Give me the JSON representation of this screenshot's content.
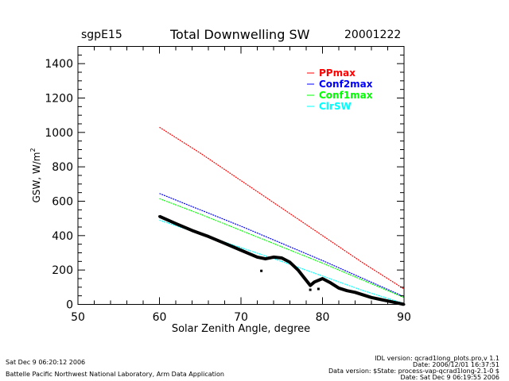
{
  "header": {
    "site": "sgpE15",
    "title": "Total Downwelling SW",
    "date": "20001222"
  },
  "footer": {
    "left": [
      "Sat Dec  9 06:20:12 2006",
      "Battelle Pacific Northwest National Laboratory, Arm Data Application"
    ],
    "right": [
      "IDL version: qcrad1long_plots.pro,v 1.1",
      "Date: 2006/12/01 16:37:51",
      "Data version: $State: process-vap-qcrad1long-2.1-0 $",
      "Date: Sat Dec  9 06:19:55 2006"
    ]
  },
  "colors": {
    "PPmax": "#ff0000",
    "Conf2max": "#0000ff",
    "Conf1max": "#00ff00",
    "ClrSW": "#00ffff",
    "data": "#000000"
  },
  "chart_data": {
    "type": "line",
    "title": "Total Downwelling SW",
    "xlabel": "Solar Zenith Angle, degree",
    "ylabel": "GSW, W/m",
    "ylabel_sup": "2",
    "xlim": [
      50,
      90
    ],
    "ylim": [
      0,
      1500
    ],
    "xticks": [
      "50",
      "60",
      "70",
      "80",
      "90"
    ],
    "yticks": [
      "0",
      "200",
      "400",
      "600",
      "800",
      "1000",
      "1200",
      "1400"
    ],
    "legend_position": "top-right",
    "series": [
      {
        "name": "PPmax",
        "x": [
          60,
          65,
          70,
          75,
          80,
          85,
          90
        ],
        "values": [
          1030,
          880,
          720,
          560,
          400,
          240,
          90
        ]
      },
      {
        "name": "Conf2max",
        "x": [
          60,
          65,
          70,
          75,
          80,
          85,
          90
        ],
        "values": [
          645,
          550,
          455,
          355,
          255,
          150,
          45
        ]
      },
      {
        "name": "Conf1max",
        "x": [
          60,
          65,
          70,
          75,
          80,
          85,
          90
        ],
        "values": [
          615,
          525,
          430,
          335,
          240,
          140,
          40
        ]
      },
      {
        "name": "ClrSW",
        "x": [
          60,
          65,
          70,
          75,
          80,
          85,
          90
        ],
        "values": [
          490,
          410,
          330,
          250,
          165,
          80,
          5
        ]
      }
    ],
    "observed": {
      "name": "data",
      "x": [
        60,
        62,
        64,
        66,
        68,
        70,
        72,
        73,
        74,
        75,
        76,
        77,
        78,
        78.5,
        79,
        80,
        81,
        82,
        83,
        84,
        85,
        86,
        87,
        88,
        89,
        90
      ],
      "values": [
        512,
        470,
        430,
        395,
        355,
        315,
        275,
        265,
        275,
        270,
        245,
        200,
        140,
        110,
        130,
        150,
        125,
        95,
        80,
        70,
        55,
        40,
        30,
        20,
        10,
        0
      ],
      "outliers": [
        [
          72.5,
          195
        ],
        [
          78.5,
          85
        ],
        [
          79.5,
          90
        ]
      ]
    }
  }
}
